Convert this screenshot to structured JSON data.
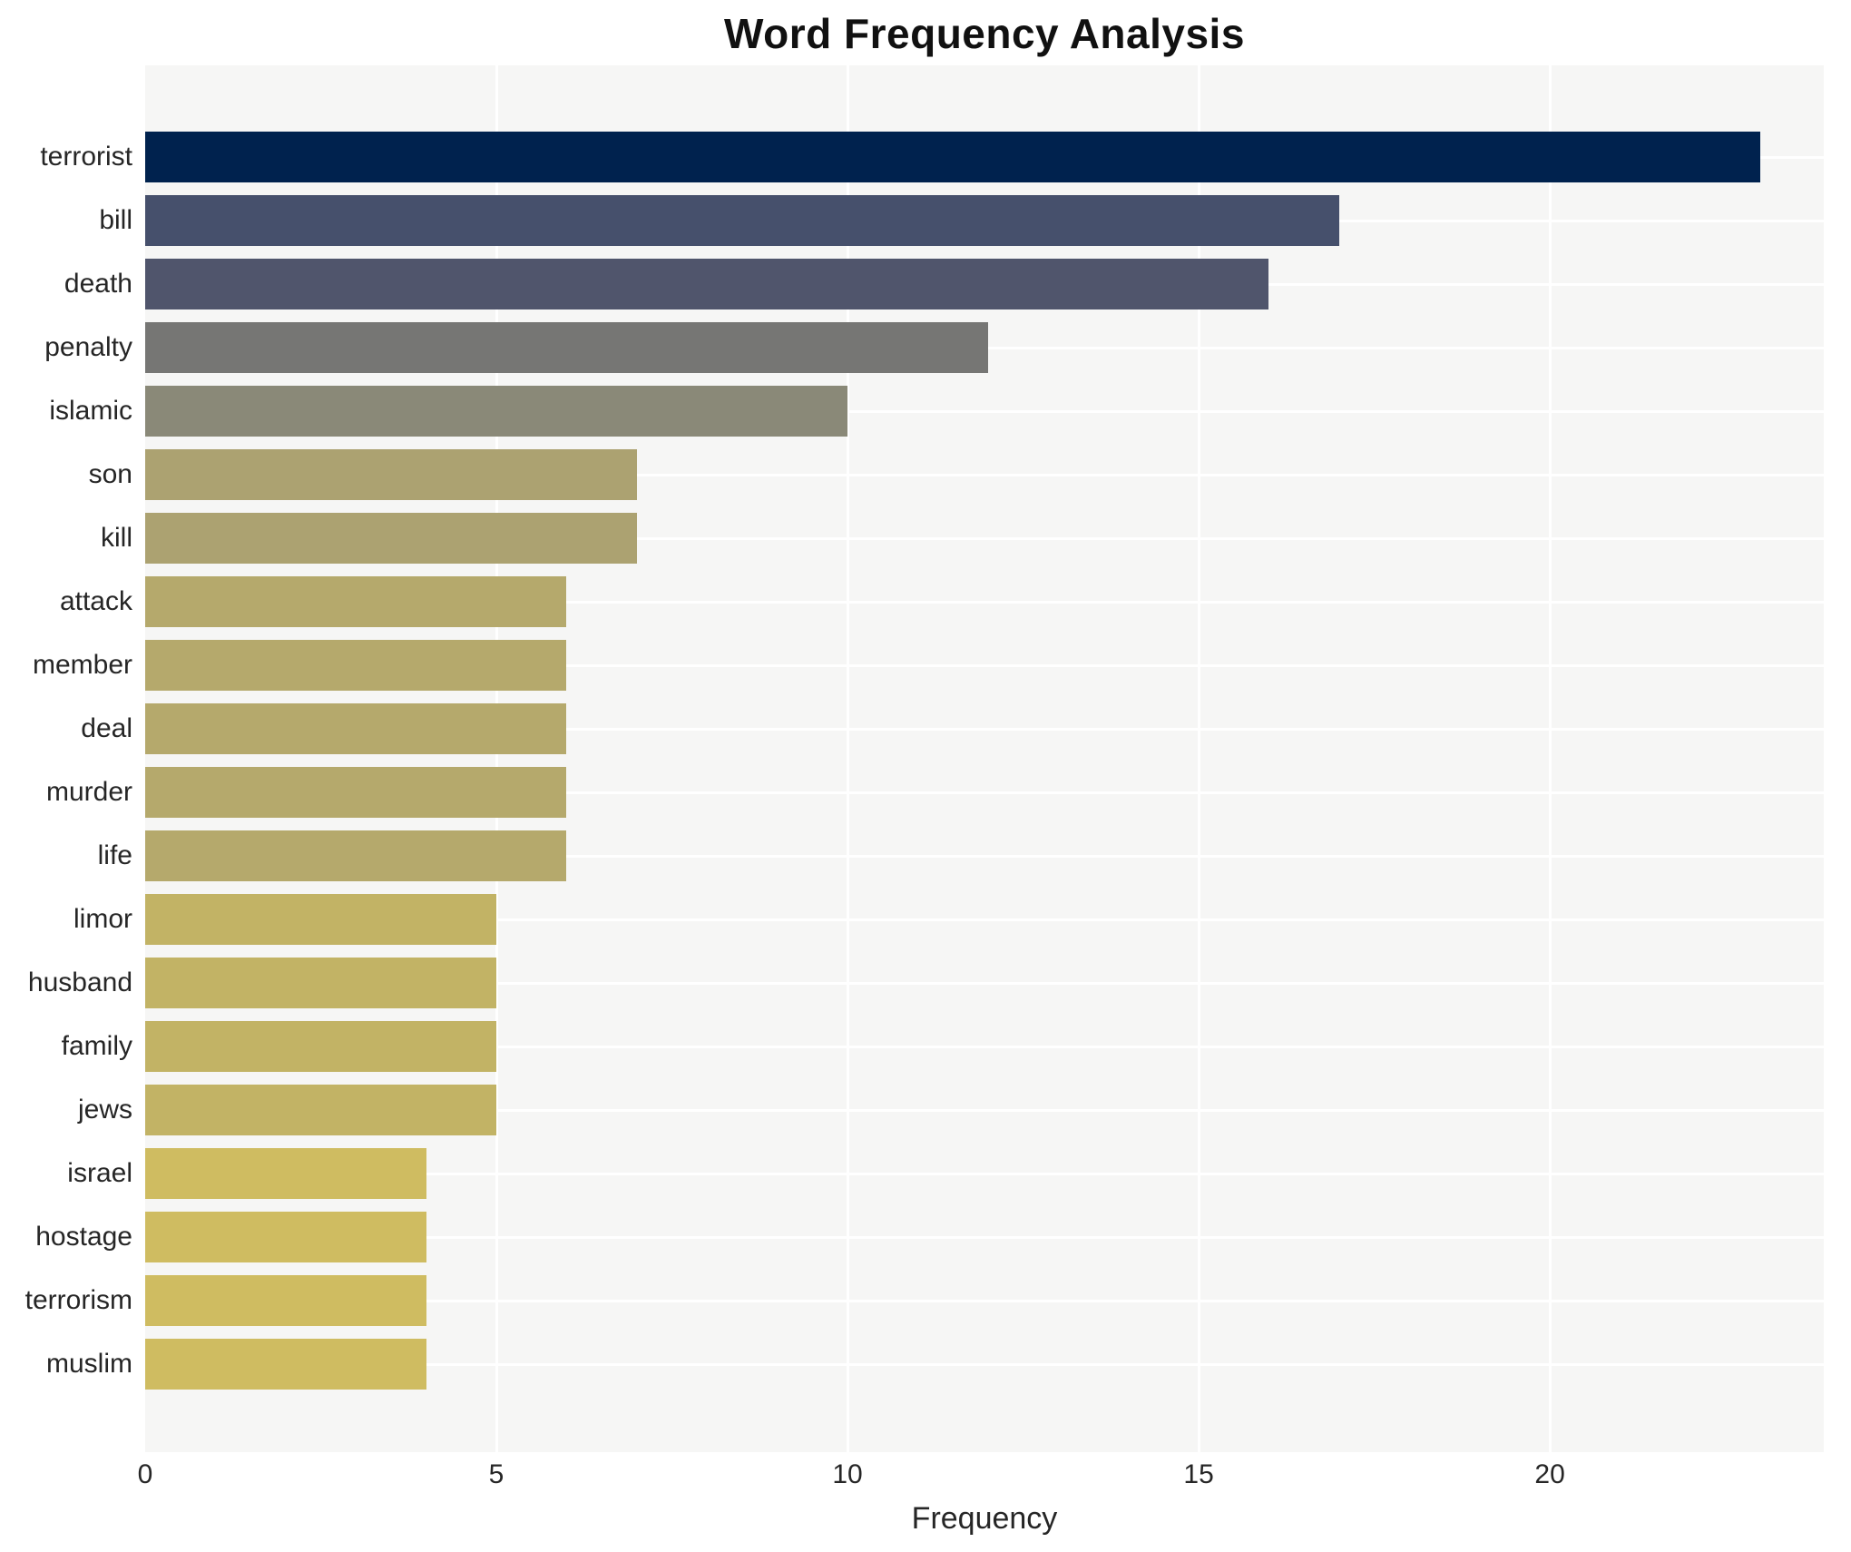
{
  "title": "Word Frequency Analysis",
  "xlabel": "Frequency",
  "chart_data": {
    "type": "bar",
    "orientation": "horizontal",
    "title": "Word Frequency Analysis",
    "xlabel": "Frequency",
    "ylabel": "",
    "categories": [
      "terrorist",
      "bill",
      "death",
      "penalty",
      "islamic",
      "son",
      "kill",
      "attack",
      "member",
      "deal",
      "murder",
      "life",
      "limor",
      "husband",
      "family",
      "jews",
      "israel",
      "hostage",
      "terrorism",
      "muslim"
    ],
    "values": [
      23,
      17,
      16,
      12,
      10,
      7,
      7,
      6,
      6,
      6,
      6,
      6,
      5,
      5,
      5,
      5,
      4,
      4,
      4,
      4
    ],
    "bar_colors": [
      "#00224e",
      "#46506c",
      "#50556c",
      "#767674",
      "#8a8978",
      "#aca271",
      "#aca271",
      "#b5a96c",
      "#b5a96c",
      "#b5a96c",
      "#b5a96c",
      "#b5a96c",
      "#c2b365",
      "#c2b365",
      "#c2b365",
      "#c2b365",
      "#cfbc61",
      "#cfbc61",
      "#cfbc61",
      "#cfbc61"
    ],
    "xticks": [
      0,
      5,
      10,
      15,
      20
    ],
    "xlim": [
      0,
      23.9
    ],
    "grid": "on",
    "gridline_color": "#ffffff",
    "panel_background": "#f6f6f5",
    "figure_background": "#ffffff",
    "legend": "none",
    "colormap": "cividis"
  }
}
